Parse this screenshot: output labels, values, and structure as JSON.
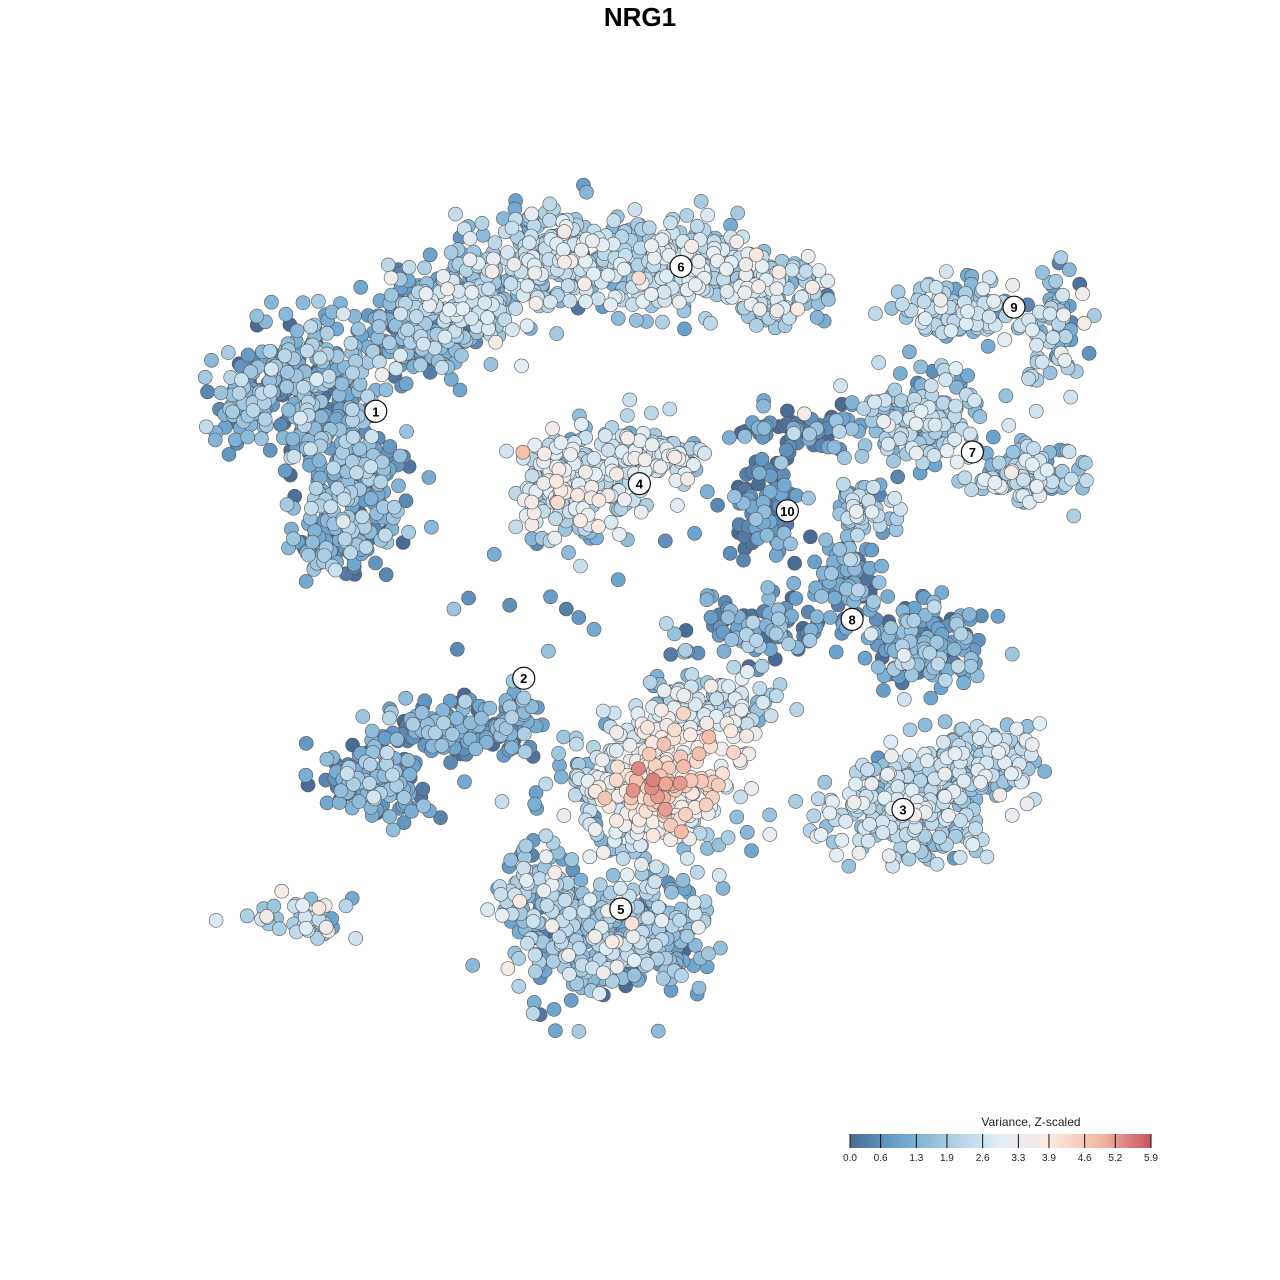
{
  "chart_data": {
    "type": "scatter",
    "title": "NRG1",
    "xlabel": "",
    "ylabel": "",
    "grid": false,
    "colorbar": {
      "title": "Variance, Z-scaled",
      "min": 0.0,
      "max": 5.9,
      "ticks": [
        "0.0",
        "0.6",
        "1.3",
        "1.9",
        "2.6",
        "3.3",
        "3.9",
        "4.6",
        "5.2",
        "5.9"
      ],
      "colors": [
        "#4a6b95",
        "#6ba4cf",
        "#a9cde3",
        "#e3eef5",
        "#fbe9e0",
        "#f3b7a2",
        "#c9545f"
      ]
    },
    "clusters": [
      {
        "label": "1",
        "x": 0.19,
        "y": 0.25,
        "mean": 1.2
      },
      {
        "label": "2",
        "x": 0.35,
        "y": 0.545,
        "mean": 1.0
      },
      {
        "label": "3",
        "x": 0.76,
        "y": 0.69,
        "mean": 2.1
      },
      {
        "label": "4",
        "x": 0.475,
        "y": 0.33,
        "mean": 2.4
      },
      {
        "label": "5",
        "x": 0.455,
        "y": 0.8,
        "mean": 1.6
      },
      {
        "label": "6",
        "x": 0.52,
        "y": 0.09,
        "mean": 2.1
      },
      {
        "label": "7",
        "x": 0.835,
        "y": 0.295,
        "mean": 1.8
      },
      {
        "label": "8",
        "x": 0.705,
        "y": 0.48,
        "mean": 1.0
      },
      {
        "label": "9",
        "x": 0.88,
        "y": 0.135,
        "mean": 1.9
      },
      {
        "label": "10",
        "x": 0.635,
        "y": 0.36,
        "mean": 0.5
      }
    ]
  }
}
